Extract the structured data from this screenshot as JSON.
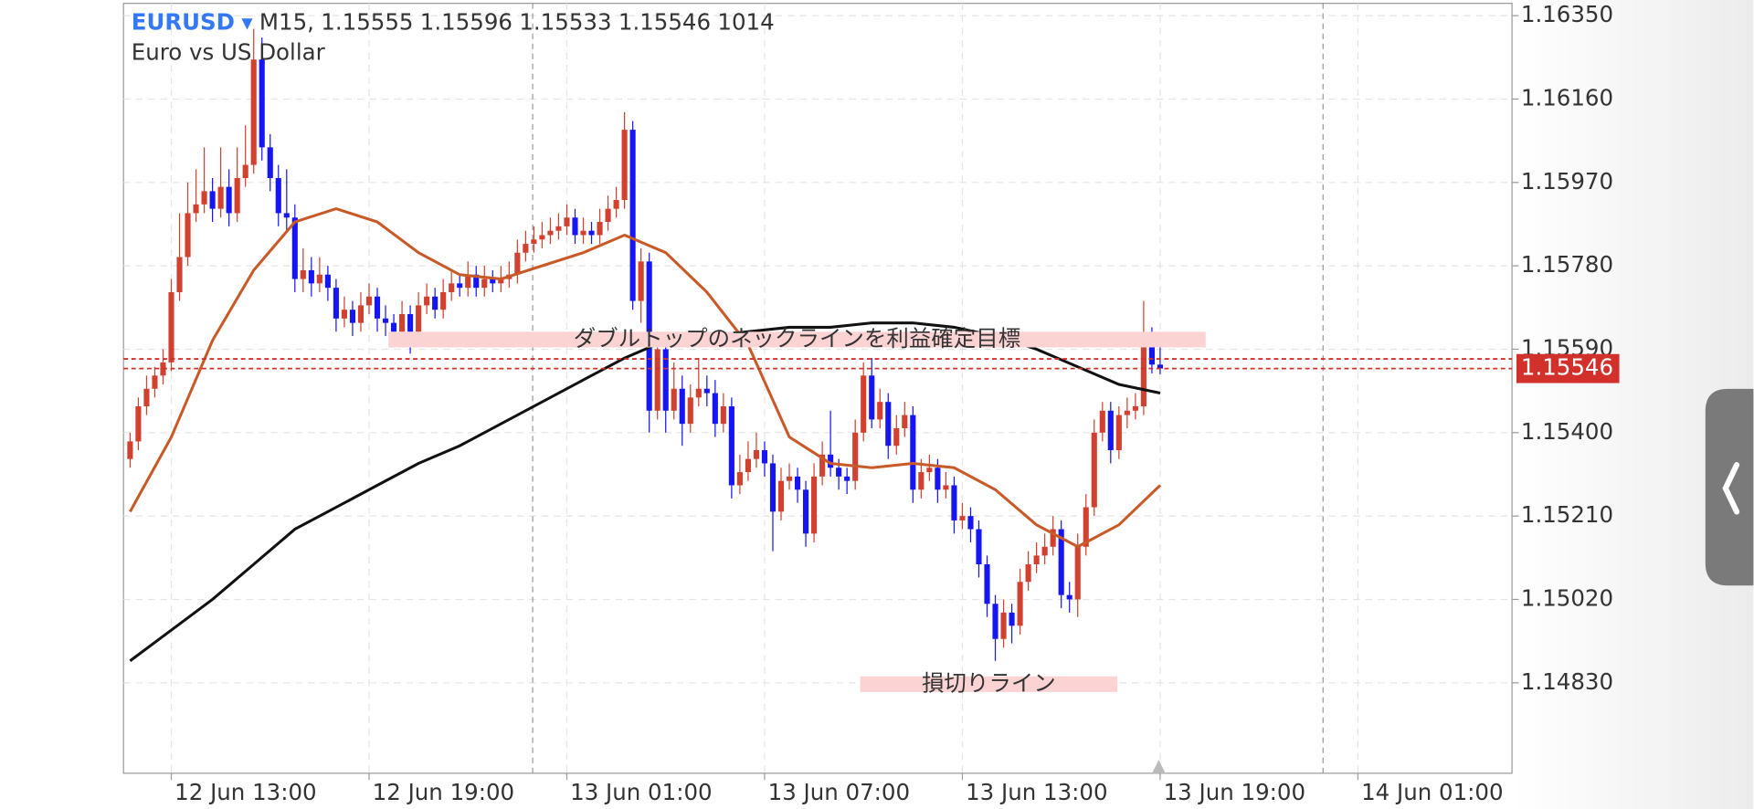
{
  "chart_data": {
    "type": "candlestick",
    "symbol": "EURUSD",
    "timeframe": "M15,",
    "volume": 1014,
    "description": "Euro vs US Dollar",
    "up_color": "#d2402f",
    "down_color": "#1616f2",
    "grid": true,
    "ylim": [
      1.14624,
      1.16378
    ],
    "yticks": [
      {
        "value": 1.1635,
        "label": "1.16350"
      },
      {
        "value": 1.1616,
        "label": "1.16160"
      },
      {
        "value": 1.1597,
        "label": "1.15970"
      },
      {
        "value": 1.1578,
        "label": "1.15780"
      },
      {
        "value": 1.1559,
        "label": "1.15590"
      },
      {
        "value": 1.154,
        "label": "1.15400"
      },
      {
        "value": 1.1521,
        "label": "1.15210"
      },
      {
        "value": 1.1502,
        "label": "1.15020"
      },
      {
        "value": 1.1483,
        "label": "1.14830"
      }
    ],
    "xlim": [
      -0.8,
      167.7
    ],
    "xticks": [
      {
        "value": 5,
        "label": "12 Jun 13:00"
      },
      {
        "value": 29,
        "label": "12 Jun 19:00"
      },
      {
        "value": 53,
        "label": "13 Jun 01:00"
      },
      {
        "value": 77,
        "label": "13 Jun 07:00"
      },
      {
        "value": 101,
        "label": "13 Jun 13:00"
      },
      {
        "value": 125,
        "label": "13 Jun 19:00"
      },
      {
        "value": 149,
        "label": "14 Jun 01:00"
      }
    ],
    "price_lines": [
      1.15568,
      1.15546
    ],
    "price_color": "#d2302a",
    "ohlc": [
      [
        1.1534,
        1.154,
        1.1532,
        1.1538
      ],
      [
        1.1538,
        1.1548,
        1.1536,
        1.1546
      ],
      [
        1.1546,
        1.1553,
        1.1544,
        1.155
      ],
      [
        1.155,
        1.1555,
        1.1548,
        1.1553
      ],
      [
        1.1553,
        1.1559,
        1.1551,
        1.1556
      ],
      [
        1.1556,
        1.1575,
        1.1554,
        1.1572
      ],
      [
        1.1572,
        1.159,
        1.157,
        1.158
      ],
      [
        1.158,
        1.1597,
        1.1578,
        1.159
      ],
      [
        1.159,
        1.16,
        1.1588,
        1.1592
      ],
      [
        1.1592,
        1.1605,
        1.159,
        1.1595
      ],
      [
        1.1595,
        1.1598,
        1.1588,
        1.1591
      ],
      [
        1.1591,
        1.1605,
        1.1589,
        1.1596
      ],
      [
        1.1596,
        1.16,
        1.1587,
        1.159
      ],
      [
        1.159,
        1.1605,
        1.1588,
        1.1598
      ],
      [
        1.1598,
        1.161,
        1.1596,
        1.1601
      ],
      [
        1.1601,
        1.1632,
        1.1599,
        1.1625
      ],
      [
        1.1625,
        1.163,
        1.1602,
        1.1605
      ],
      [
        1.1605,
        1.1608,
        1.1595,
        1.1598
      ],
      [
        1.1598,
        1.1601,
        1.1587,
        1.159
      ],
      [
        1.159,
        1.16,
        1.1586,
        1.1589
      ],
      [
        1.1589,
        1.1592,
        1.1572,
        1.1575
      ],
      [
        1.1575,
        1.1582,
        1.1572,
        1.1577
      ],
      [
        1.1577,
        1.158,
        1.1571,
        1.1574
      ],
      [
        1.1574,
        1.158,
        1.1572,
        1.1576
      ],
      [
        1.1576,
        1.1578,
        1.157,
        1.1573
      ],
      [
        1.1573,
        1.1575,
        1.1563,
        1.1566
      ],
      [
        1.1566,
        1.1571,
        1.1564,
        1.1568
      ],
      [
        1.1568,
        1.157,
        1.1562,
        1.1565
      ],
      [
        1.1565,
        1.1572,
        1.1563,
        1.1569
      ],
      [
        1.1569,
        1.1574,
        1.1567,
        1.1571
      ],
      [
        1.1571,
        1.1573,
        1.1563,
        1.1566
      ],
      [
        1.1566,
        1.1569,
        1.1562,
        1.1565
      ],
      [
        1.1565,
        1.1567,
        1.156,
        1.1563
      ],
      [
        1.1563,
        1.157,
        1.1561,
        1.1567
      ],
      [
        1.1567,
        1.1569,
        1.1558,
        1.1563
      ],
      [
        1.1563,
        1.1572,
        1.1561,
        1.1569
      ],
      [
        1.1569,
        1.1574,
        1.1567,
        1.1571
      ],
      [
        1.1571,
        1.1573,
        1.1566,
        1.1568
      ],
      [
        1.1568,
        1.1575,
        1.1566,
        1.1572
      ],
      [
        1.1572,
        1.1577,
        1.157,
        1.1574
      ],
      [
        1.1574,
        1.1576,
        1.1571,
        1.1573
      ],
      [
        1.1573,
        1.1579,
        1.1571,
        1.1576
      ],
      [
        1.1576,
        1.1578,
        1.1571,
        1.1573
      ],
      [
        1.1573,
        1.1578,
        1.1571,
        1.1575
      ],
      [
        1.1575,
        1.1577,
        1.1572,
        1.1574
      ],
      [
        1.1574,
        1.1578,
        1.1572,
        1.1575
      ],
      [
        1.1575,
        1.1579,
        1.1573,
        1.1576
      ],
      [
        1.1576,
        1.1584,
        1.1574,
        1.1581
      ],
      [
        1.1581,
        1.1586,
        1.1579,
        1.1583
      ],
      [
        1.1583,
        1.1587,
        1.1581,
        1.1584
      ],
      [
        1.1584,
        1.1588,
        1.1582,
        1.1585
      ],
      [
        1.1585,
        1.1589,
        1.1583,
        1.1586
      ],
      [
        1.1586,
        1.159,
        1.1584,
        1.1587
      ],
      [
        1.1587,
        1.1592,
        1.1585,
        1.1589
      ],
      [
        1.1589,
        1.1591,
        1.1583,
        1.1585
      ],
      [
        1.1585,
        1.1589,
        1.1583,
        1.1586
      ],
      [
        1.1586,
        1.1588,
        1.1583,
        1.1585
      ],
      [
        1.1585,
        1.1591,
        1.1583,
        1.1588
      ],
      [
        1.1588,
        1.1594,
        1.1586,
        1.1591
      ],
      [
        1.1591,
        1.1596,
        1.1589,
        1.1593
      ],
      [
        1.1593,
        1.1613,
        1.1591,
        1.1609
      ],
      [
        1.1609,
        1.1611,
        1.1568,
        1.157
      ],
      [
        1.157,
        1.1582,
        1.1565,
        1.1579
      ],
      [
        1.1579,
        1.1581,
        1.154,
        1.1545
      ],
      [
        1.1545,
        1.1563,
        1.1543,
        1.1559
      ],
      [
        1.1559,
        1.1562,
        1.154,
        1.1545
      ],
      [
        1.1545,
        1.1556,
        1.1543,
        1.155
      ],
      [
        1.155,
        1.1553,
        1.1537,
        1.1542
      ],
      [
        1.1542,
        1.1551,
        1.154,
        1.1548
      ],
      [
        1.1548,
        1.1557,
        1.1546,
        1.155
      ],
      [
        1.155,
        1.1553,
        1.1546,
        1.1549
      ],
      [
        1.1549,
        1.1552,
        1.1539,
        1.1542
      ],
      [
        1.1542,
        1.1549,
        1.154,
        1.1546
      ],
      [
        1.1546,
        1.1548,
        1.1525,
        1.1528
      ],
      [
        1.1528,
        1.1535,
        1.1526,
        1.1531
      ],
      [
        1.1531,
        1.1538,
        1.1529,
        1.1534
      ],
      [
        1.1534,
        1.154,
        1.1532,
        1.1536
      ],
      [
        1.1536,
        1.1538,
        1.153,
        1.1533
      ],
      [
        1.1533,
        1.1535,
        1.1513,
        1.1522
      ],
      [
        1.1522,
        1.1532,
        1.152,
        1.1529
      ],
      [
        1.1529,
        1.1533,
        1.1527,
        1.153
      ],
      [
        1.153,
        1.1532,
        1.1524,
        1.1527
      ],
      [
        1.1527,
        1.1529,
        1.1514,
        1.1517
      ],
      [
        1.1517,
        1.1533,
        1.1515,
        1.153
      ],
      [
        1.153,
        1.1538,
        1.1528,
        1.1535
      ],
      [
        1.1535,
        1.1545,
        1.153,
        1.1532
      ],
      [
        1.1532,
        1.1534,
        1.1527,
        1.153
      ],
      [
        1.153,
        1.1532,
        1.1526,
        1.1529
      ],
      [
        1.1529,
        1.1543,
        1.1527,
        1.154
      ],
      [
        1.154,
        1.1556,
        1.1538,
        1.1553
      ],
      [
        1.1553,
        1.1557,
        1.1541,
        1.1543
      ],
      [
        1.1543,
        1.155,
        1.1541,
        1.1547
      ],
      [
        1.1547,
        1.1549,
        1.1534,
        1.1537
      ],
      [
        1.1537,
        1.1544,
        1.1535,
        1.1541
      ],
      [
        1.1541,
        1.1547,
        1.1539,
        1.1544
      ],
      [
        1.1544,
        1.1546,
        1.1524,
        1.1527
      ],
      [
        1.1527,
        1.1534,
        1.1525,
        1.1531
      ],
      [
        1.1531,
        1.1535,
        1.1529,
        1.1532
      ],
      [
        1.1532,
        1.1534,
        1.1524,
        1.1527
      ],
      [
        1.1527,
        1.1531,
        1.1525,
        1.1528
      ],
      [
        1.1528,
        1.153,
        1.1517,
        1.152
      ],
      [
        1.152,
        1.1524,
        1.1518,
        1.1521
      ],
      [
        1.1521,
        1.1523,
        1.1515,
        1.1518
      ],
      [
        1.1518,
        1.152,
        1.1507,
        1.151
      ],
      [
        1.151,
        1.1512,
        1.1498,
        1.1501
      ],
      [
        1.1501,
        1.1503,
        1.1488,
        1.1493
      ],
      [
        1.1493,
        1.1502,
        1.1491,
        1.1499
      ],
      [
        1.1499,
        1.1501,
        1.1492,
        1.1496
      ],
      [
        1.1496,
        1.1509,
        1.1494,
        1.1506
      ],
      [
        1.1506,
        1.1513,
        1.1504,
        1.151
      ],
      [
        1.151,
        1.1515,
        1.1508,
        1.1512
      ],
      [
        1.1512,
        1.1517,
        1.151,
        1.1514
      ],
      [
        1.1514,
        1.1521,
        1.1512,
        1.1518
      ],
      [
        1.1518,
        1.152,
        1.15,
        1.1503
      ],
      [
        1.1503,
        1.1506,
        1.1499,
        1.1502
      ],
      [
        1.1502,
        1.1517,
        1.1498,
        1.1514
      ],
      [
        1.1514,
        1.1526,
        1.1512,
        1.1523
      ],
      [
        1.1523,
        1.1543,
        1.1521,
        1.154
      ],
      [
        1.154,
        1.1547,
        1.1538,
        1.1545
      ],
      [
        1.1545,
        1.1547,
        1.1533,
        1.1536
      ],
      [
        1.1536,
        1.1546,
        1.1534,
        1.1544
      ],
      [
        1.1544,
        1.1548,
        1.1541,
        1.1545
      ],
      [
        1.1545,
        1.1549,
        1.1543,
        1.1546
      ],
      [
        1.1546,
        1.157,
        1.1544,
        1.1562
      ],
      [
        1.1562,
        1.1564,
        1.15535,
        1.15555
      ],
      [
        1.15555,
        1.15596,
        1.15533,
        1.15546
      ]
    ],
    "lines": [
      {
        "color": "#c95a28",
        "x": [
          0,
          5,
          10,
          15,
          20,
          25,
          30,
          35,
          40,
          45,
          50,
          55,
          60,
          65,
          70,
          75,
          80,
          85,
          90,
          95,
          100,
          105,
          110,
          115,
          120,
          125
        ],
        "values": [
          1.1522,
          1.1539,
          1.1561,
          1.1577,
          1.1588,
          1.1591,
          1.1588,
          1.1581,
          1.1576,
          1.1575,
          1.1578,
          1.1581,
          1.1585,
          1.1581,
          1.1572,
          1.156,
          1.1539,
          1.1533,
          1.1532,
          1.1533,
          1.1532,
          1.1527,
          1.1519,
          1.1514,
          1.1519,
          1.1528
        ]
      },
      {
        "color": "#111111",
        "x": [
          0,
          5,
          10,
          15,
          20,
          25,
          30,
          35,
          40,
          45,
          50,
          55,
          60,
          65,
          70,
          75,
          80,
          85,
          90,
          95,
          100,
          105,
          110,
          115,
          120,
          125
        ],
        "values": [
          1.1488,
          1.1495,
          1.1502,
          1.151,
          1.1518,
          1.1523,
          1.1528,
          1.1533,
          1.1537,
          1.1542,
          1.1547,
          1.1552,
          1.1557,
          1.1561,
          1.1562,
          1.1563,
          1.1564,
          1.1564,
          1.1565,
          1.1565,
          1.1564,
          1.1562,
          1.1559,
          1.1555,
          1.1551,
          1.1549
        ]
      }
    ],
    "annotations": [
      {
        "text": "ダブルトップのネックラインを利益確定目標",
        "level": 1.15612,
        "color": "#fbd3d3"
      },
      {
        "text": "損切りライン",
        "level": 1.14827,
        "color": "#fbd3d3"
      }
    ]
  }
}
